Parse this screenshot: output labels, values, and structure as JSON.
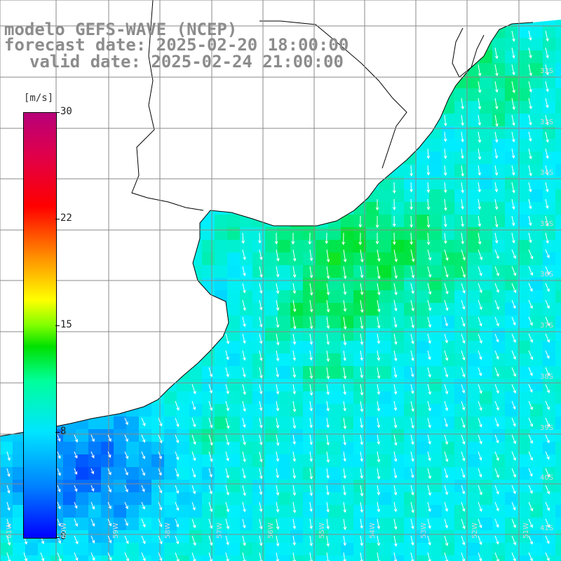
{
  "title": {
    "line1": "modelo GEFS-WAVE (NCEP)",
    "line2": "forecast date: 2025-02-20 18:00:00",
    "line3": "valid date: 2025-02-24 21:00:00"
  },
  "colorbar": {
    "unit": "[m/s]",
    "min": 0,
    "max": 30,
    "ticks": [
      "30",
      "22",
      "15",
      "8",
      "0"
    ],
    "colors": [
      "#0000ff",
      "#0080ff",
      "#00e5ff",
      "#00ff9a",
      "#00e000",
      "#ffff00",
      "#ff9000",
      "#ff0000",
      "#b8007a"
    ]
  },
  "map": {
    "lat_labels": [
      "32S",
      "33S",
      "34S",
      "35S",
      "36S",
      "37S",
      "38S",
      "39S",
      "40S",
      "41S"
    ],
    "lon_labels": [
      "61W",
      "60W",
      "59W",
      "58W",
      "57W",
      "56W",
      "55W",
      "54W",
      "53W",
      "52W",
      "51W"
    ],
    "land_color": "#ffffff",
    "grid_color": "#8a8a8a",
    "arrow_color": "#ffffff"
  }
}
